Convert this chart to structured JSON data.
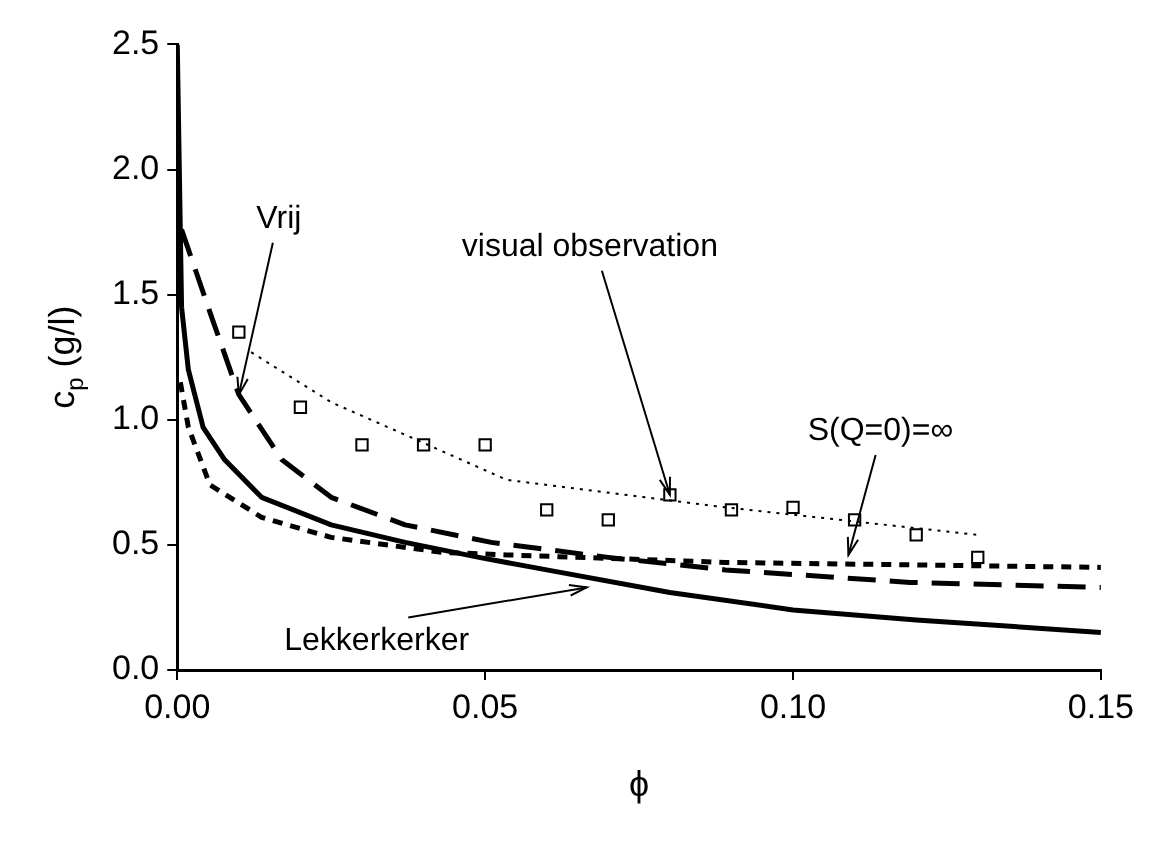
{
  "chart_data": {
    "type": "line",
    "xlabel": "ϕ",
    "ylabel": "c$_{p}$ (g/l)",
    "xlim": [
      0,
      0.15
    ],
    "xticks": [
      {
        "value": 0,
        "label": "0.00"
      },
      0.05,
      {
        "value": 0.1,
        "label": "0.10"
      },
      0.15
    ],
    "ylim": [
      0,
      2.5
    ],
    "yticks": [
      {
        "value": 0,
        "label": "0.0"
      },
      0.5,
      {
        "value": 1,
        "label": "1.0"
      },
      1.5,
      {
        "value": 2,
        "label": "2.0"
      },
      2.5
    ],
    "grid": false,
    "legend": false,
    "series": [
      {
        "type": "line",
        "color": "#000000",
        "line_style": "solid",
        "marker": "none",
        "x": [
          0,
          0.0007,
          0.0018,
          0.0042,
          0.0077,
          0.0137,
          0.025,
          0.037,
          0.049,
          0.06,
          0.08,
          0.1,
          0.12,
          0.15
        ],
        "values": [
          2.5,
          1.45,
          1.2,
          0.97,
          0.84,
          0.69,
          0.58,
          0.51,
          0.45,
          0.4,
          0.31,
          0.24,
          0.2,
          0.15
        ]
      },
      {
        "type": "line",
        "color": "#000000",
        "line_style": "dashed",
        "marker": "none",
        "x": [
          0.0007,
          0.0053,
          0.01,
          0.017,
          0.025,
          0.037,
          0.051,
          0.07,
          0.089,
          0.119,
          0.15
        ],
        "values": [
          1.76,
          1.43,
          1.1,
          0.84,
          0.69,
          0.58,
          0.51,
          0.45,
          0.4,
          0.35,
          0.33
        ]
      },
      {
        "type": "line",
        "color": "#000000",
        "line_style": "dashed",
        "marker": "none",
        "x": [
          0.0005,
          0.0018,
          0.0053,
          0.0137,
          0.025,
          0.043,
          0.0535,
          0.089,
          0.15
        ],
        "values": [
          1.15,
          0.97,
          0.74,
          0.61,
          0.53,
          0.47,
          0.46,
          0.43,
          0.41
        ]
      },
      {
        "type": "line",
        "color": "#000000",
        "line_style": "dotted",
        "marker": "none",
        "x": [
          0.012,
          0.025,
          0.037,
          0.0535,
          0.089,
          0.13
        ],
        "values": [
          1.27,
          1.07,
          0.94,
          0.76,
          0.65,
          0.54
        ]
      },
      {
        "type": "scatter",
        "color": "#000000",
        "marker": "square",
        "x": [
          0.01,
          0.02,
          0.03,
          0.04,
          0.05,
          0.06,
          0.07,
          0.08,
          0.09,
          0.1,
          0.11,
          0.12,
          0.13
        ],
        "values": [
          1.35,
          1.05,
          0.9,
          0.9,
          0.9,
          0.64,
          0.6,
          0.7,
          0.64,
          0.65,
          0.6,
          0.54,
          0.45
        ]
      }
    ],
    "annotations": [
      {
        "text": "Vrij",
        "x": 0.01,
        "y": 1.1
      },
      {
        "text": "visual observation",
        "x": 0.08,
        "y": 0.7
      },
      {
        "text": "S(Q=0)=∞",
        "x": 0.109,
        "y": 0.46
      },
      {
        "text": "Lekkerkerker",
        "x": 0.0665,
        "y": 0.33
      }
    ]
  }
}
